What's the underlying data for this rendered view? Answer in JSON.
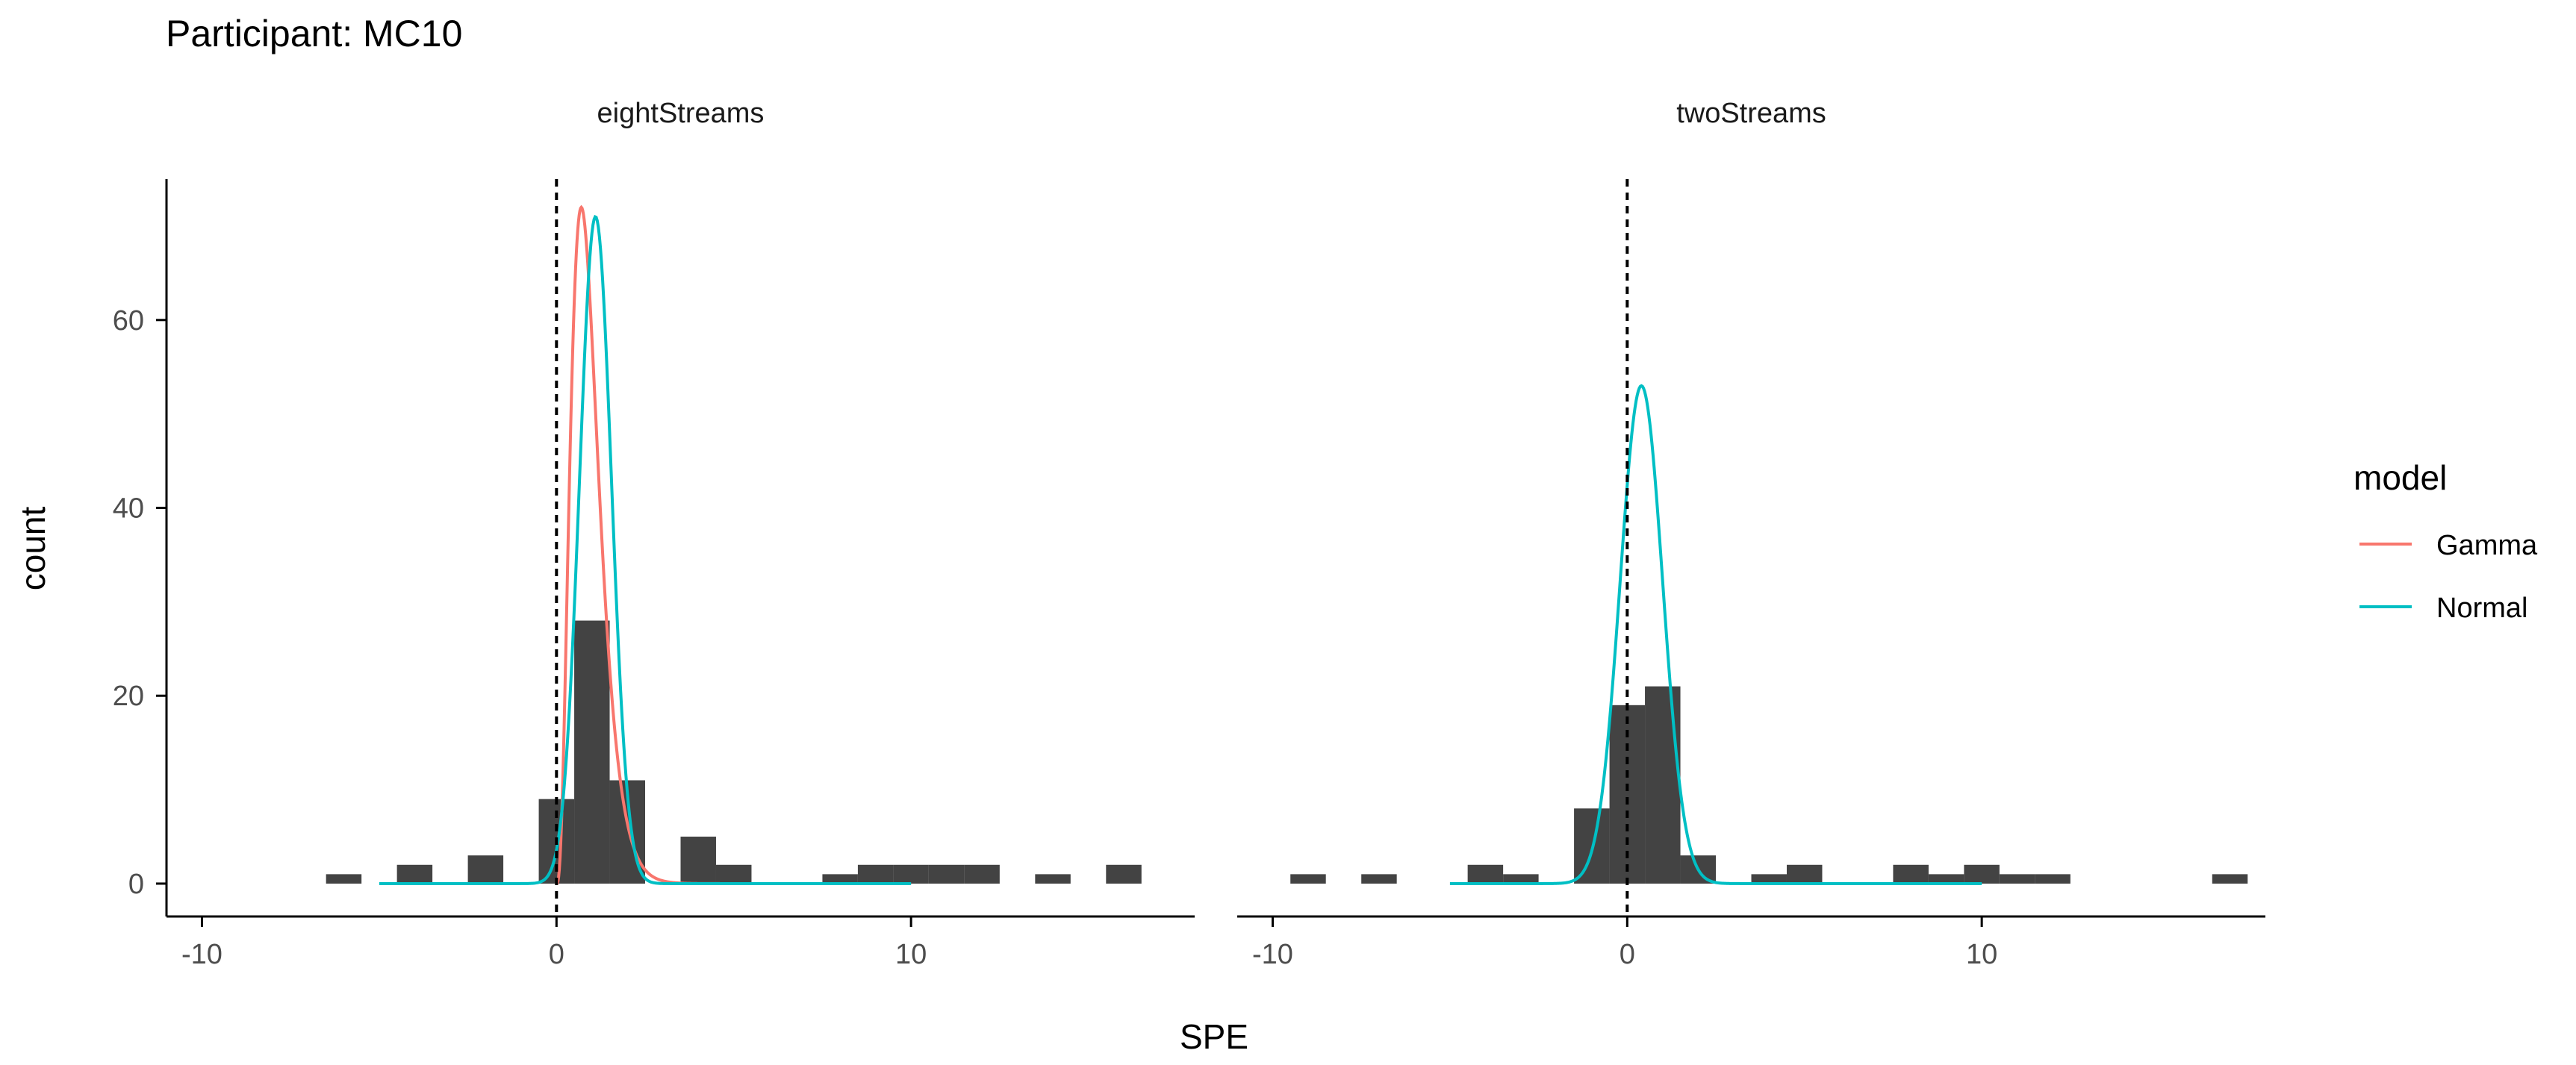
{
  "title": "Participant: MC10",
  "colors": {
    "bar": "#434343",
    "gamma": "#F8766D",
    "normal": "#00BFC4",
    "axis": "#000000",
    "tick_label": "#4d4d4d",
    "reference_line": "#000000"
  },
  "chart_data": {
    "type": "bar",
    "xlabel": "SPE",
    "ylabel": "count",
    "xlim": [
      -11,
      18
    ],
    "ylim": [
      -3.5,
      75
    ],
    "x_ticks": [
      -10,
      0,
      10
    ],
    "x_tick_labels": [
      "-10",
      "0",
      "10"
    ],
    "y_ticks": [
      0,
      20,
      40,
      60
    ],
    "y_tick_labels": [
      "0",
      "20",
      "40",
      "60"
    ],
    "bin_width": 1,
    "reference_x": 0,
    "grid": false,
    "legend": {
      "title": "model",
      "position": "right",
      "entries": [
        {
          "name": "Gamma",
          "color": "#F8766D"
        },
        {
          "name": "Normal",
          "color": "#00BFC4"
        }
      ]
    },
    "panels": [
      {
        "title": "eightStreams",
        "bars": [
          {
            "x": -6,
            "count": 1
          },
          {
            "x": -4,
            "count": 2
          },
          {
            "x": -2,
            "count": 3
          },
          {
            "x": 0,
            "count": 9
          },
          {
            "x": 1,
            "count": 28
          },
          {
            "x": 2,
            "count": 11
          },
          {
            "x": 4,
            "count": 5
          },
          {
            "x": 5,
            "count": 2
          },
          {
            "x": 8,
            "count": 1
          },
          {
            "x": 9,
            "count": 2
          },
          {
            "x": 10,
            "count": 2
          },
          {
            "x": 11,
            "count": 2
          },
          {
            "x": 12,
            "count": 2
          },
          {
            "x": 14,
            "count": 1
          },
          {
            "x": 16,
            "count": 2
          }
        ],
        "curves": [
          {
            "name": "Gamma",
            "color": "#F8766D",
            "kind": "gamma",
            "peak_x": 0.7,
            "peak_y": 72,
            "x_range": [
              0,
              10
            ]
          },
          {
            "name": "Normal",
            "color": "#00BFC4",
            "kind": "normal",
            "mean": 1.1,
            "sd": 0.45,
            "peak_y": 71,
            "x_range": [
              -5,
              10
            ]
          }
        ]
      },
      {
        "title": "twoStreams",
        "bars": [
          {
            "x": -9,
            "count": 1
          },
          {
            "x": -7,
            "count": 1
          },
          {
            "x": -4,
            "count": 2
          },
          {
            "x": -3,
            "count": 1
          },
          {
            "x": -1,
            "count": 8
          },
          {
            "x": 0,
            "count": 19
          },
          {
            "x": 1,
            "count": 21
          },
          {
            "x": 2,
            "count": 3
          },
          {
            "x": 4,
            "count": 1
          },
          {
            "x": 5,
            "count": 2
          },
          {
            "x": 8,
            "count": 2
          },
          {
            "x": 9,
            "count": 1
          },
          {
            "x": 10,
            "count": 2
          },
          {
            "x": 11,
            "count": 1
          },
          {
            "x": 12,
            "count": 1
          },
          {
            "x": 17,
            "count": 1
          }
        ],
        "curves": [
          {
            "name": "Normal",
            "color": "#00BFC4",
            "kind": "normal",
            "mean": 0.4,
            "sd": 0.6,
            "peak_y": 53,
            "x_range": [
              -5,
              10
            ]
          }
        ]
      }
    ]
  }
}
